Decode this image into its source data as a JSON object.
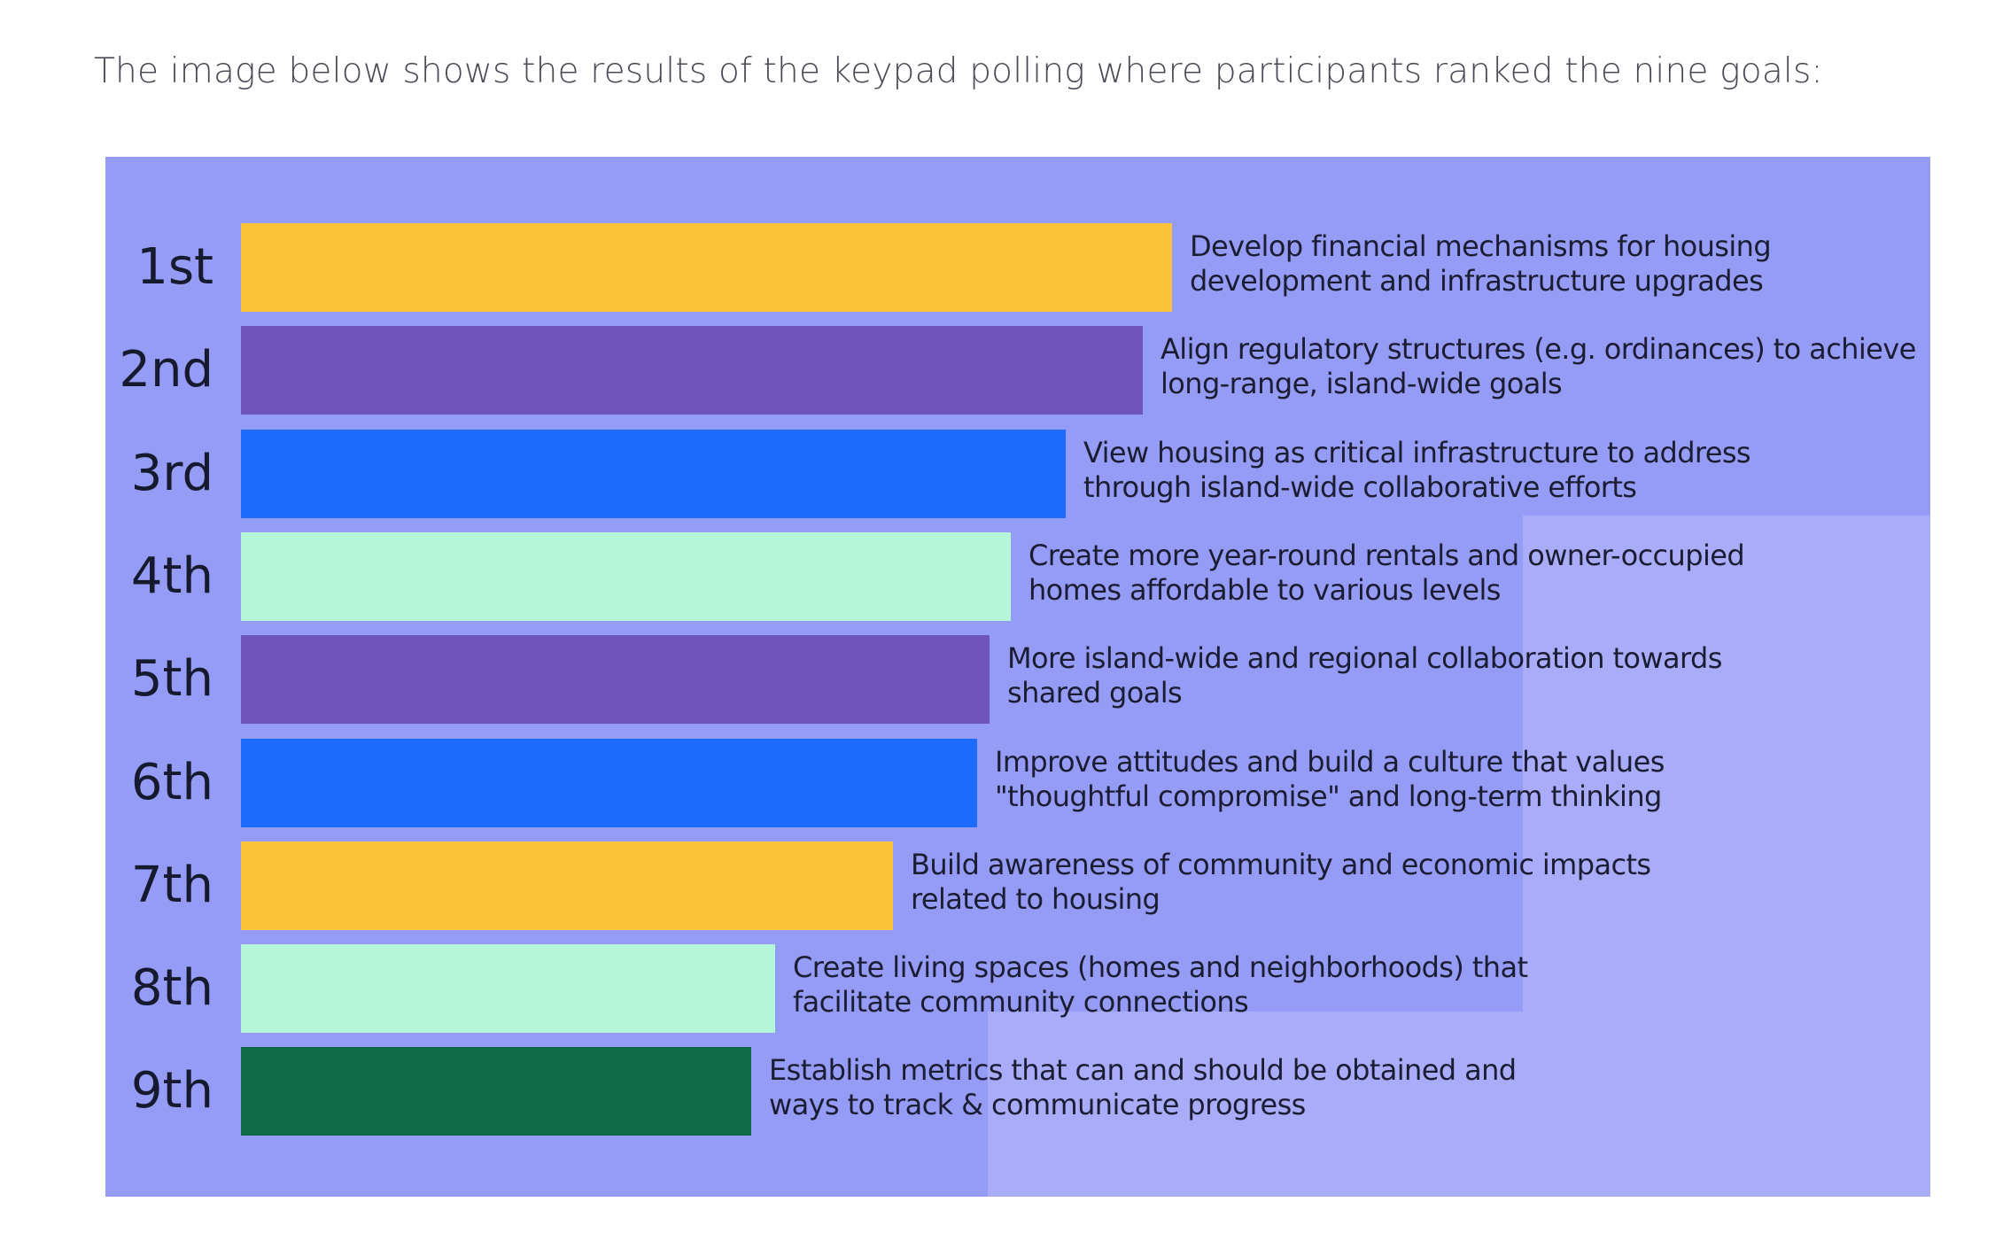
{
  "intro_text": "The image below shows the results of the keypad polling where participants ranked the nine goals:",
  "chart_data": {
    "type": "bar",
    "orientation": "horizontal",
    "title": "",
    "categories": [
      "1st",
      "2nd",
      "3rd",
      "4th",
      "5th",
      "6th",
      "7th",
      "8th",
      "9th"
    ],
    "labels": [
      [
        "Develop financial mechanisms for housing",
        "development and infrastructure upgrades"
      ],
      [
        "Align regulatory structures (e.g. ordinances) to achieve",
        "long-range, island-wide goals"
      ],
      [
        "View housing as critical infrastructure to address",
        "through island-wide collaborative efforts"
      ],
      [
        "Create more year-round rentals and owner-occupied",
        "homes affordable to various levels"
      ],
      [
        "More island-wide and regional collaboration towards",
        "shared goals"
      ],
      [
        "Improve attitudes and build a culture that values",
        "\"thoughtful compromise\" and long-term thinking"
      ],
      [
        "Build awareness of community and economic impacts",
        "related to housing"
      ],
      [
        "Create living spaces (homes and neighborhoods) that",
        "facilitate community connections"
      ],
      [
        "Establish metrics that can and should be obtained and",
        "ways to track & communicate progress"
      ]
    ],
    "values": [
      100,
      96.9,
      88.6,
      82.7,
      80.4,
      79.1,
      70.0,
      57.4,
      54.8
    ],
    "colors": [
      "#fdc43b",
      "#6f55bb",
      "#1d6bfc",
      "#b6f6d8",
      "#6f55bb",
      "#1d6bfc",
      "#fdc43b",
      "#b6f6d8",
      "#0e6b47"
    ],
    "xlim": [
      0,
      100
    ],
    "grid": false,
    "legend": "none",
    "background_color": "#959cf5"
  }
}
